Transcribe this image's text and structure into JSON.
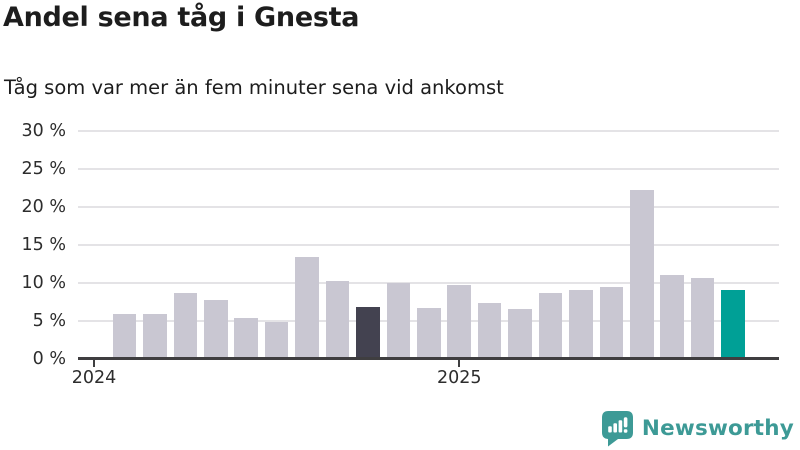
{
  "header": {
    "title": "Andel sena tåg i Gnesta",
    "subtitle": "Tåg som var mer än fem minuter sena vid ankomst"
  },
  "chart_data": {
    "type": "bar",
    "title": "Andel sena tåg i Gnesta",
    "subtitle": "Tåg som var mer än fem minuter sena vid ankomst",
    "unit": "%",
    "categories": [
      "2024-02",
      "2024-03",
      "2024-04",
      "2024-05",
      "2024-06",
      "2024-07",
      "2024-08",
      "2024-09",
      "2024-10",
      "2024-11",
      "2024-12",
      "2025-01",
      "2025-02",
      "2025-03",
      "2025-04",
      "2025-05",
      "2025-06",
      "2025-07",
      "2025-08",
      "2025-09",
      "2025-10"
    ],
    "values": [
      5.8,
      5.8,
      8.6,
      7.7,
      5.3,
      4.8,
      13.3,
      10.2,
      6.8,
      9.9,
      6.7,
      9.7,
      7.3,
      6.5,
      8.6,
      9.0,
      9.4,
      22.2,
      11.0,
      10.6,
      9.0
    ],
    "highlight_dark_index": 8,
    "highlight_teal_index": 20,
    "note": "2024-01 has no bar (missing data)",
    "ylim": [
      0,
      30
    ],
    "grid": "horizontal",
    "legend": "none",
    "y_ticks": [
      {
        "value": 0,
        "label": "0 %"
      },
      {
        "value": 5,
        "label": "5 %"
      },
      {
        "value": 10,
        "label": "10 %"
      },
      {
        "value": 15,
        "label": "15 %"
      },
      {
        "value": 20,
        "label": "20 %"
      },
      {
        "value": 25,
        "label": "25 %"
      },
      {
        "value": 30,
        "label": "30 %"
      }
    ],
    "x_ticks": [
      {
        "label": "2024",
        "bar_offset": -1
      },
      {
        "label": "2025",
        "bar_offset": 11
      }
    ],
    "colors": {
      "bar": "#c9c7d2",
      "highlight_dark": "#434250",
      "highlight_teal": "#00a096",
      "gridline": "#e4e3e6",
      "axis": "#3f3e40",
      "text": "#1d1d1d"
    }
  },
  "footer": {
    "brand": "Newsworthy",
    "logo_icon": "bar-chart-speech-bubble-icon",
    "brand_color": "#3d9a96"
  }
}
